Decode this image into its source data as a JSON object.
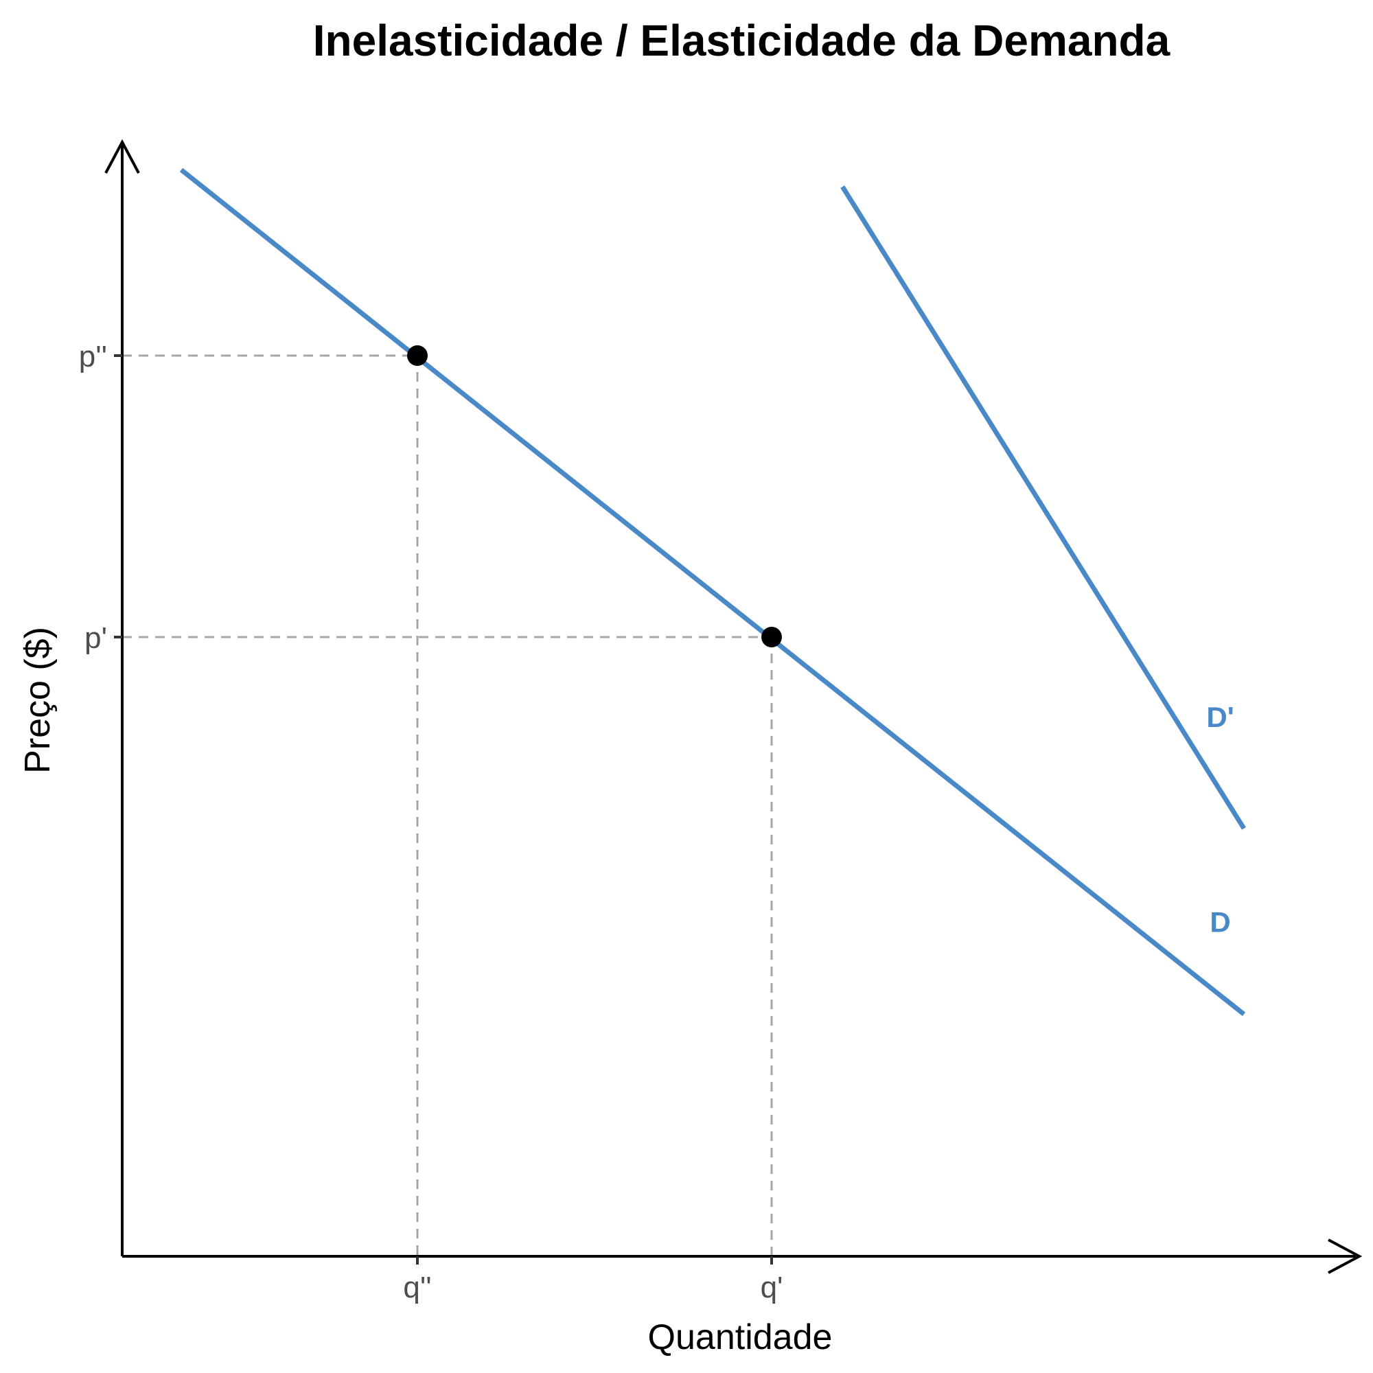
{
  "chart_data": {
    "type": "line",
    "title": "Inelasticidade / Elasticidade da Demanda",
    "xlabel": "Quantidade",
    "ylabel": "Preço ($)",
    "xlim": [
      0,
      10
    ],
    "ylim": [
      0,
      10
    ],
    "x_ticks": [
      {
        "value": 2.5,
        "label": "q''"
      },
      {
        "value": 5.5,
        "label": "q'"
      }
    ],
    "y_ticks": [
      {
        "value": 8,
        "label": "p''"
      },
      {
        "value": 5.5,
        "label": "p'"
      }
    ],
    "grid": false,
    "series": [
      {
        "name": "D",
        "color": "#4a89c8",
        "x": [
          0.5,
          9.5
        ],
        "y": [
          9.65,
          2.15
        ]
      },
      {
        "name": "D'",
        "color": "#4a89c8",
        "x": [
          6.1,
          9.5
        ],
        "y": [
          9.5,
          3.8
        ]
      }
    ],
    "points": [
      {
        "x": 2.5,
        "y": 8
      },
      {
        "x": 5.5,
        "y": 5.5
      }
    ],
    "colors": {
      "curve": "#4a89c8",
      "point": "#000000",
      "guide": "#a6a6a6",
      "axis": "#000000"
    }
  }
}
